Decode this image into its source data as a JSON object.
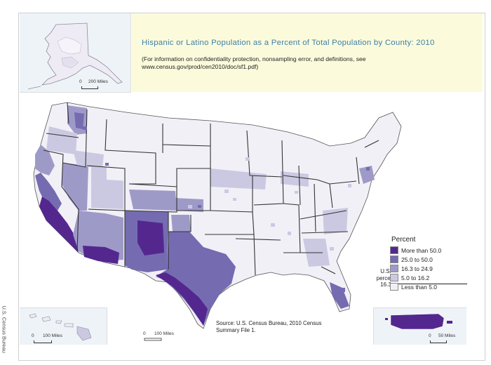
{
  "title": "Hispanic or Latino Population as a Percent of Total Population by County: 2010",
  "note": "(For information on confidentiality protection, nonsampling error, and definitions, see www.census.gov/prod/cen2010/doc/sf1.pdf)",
  "credit": "U.S. Census Bureau",
  "source": "Source: U.S. Census Bureau, 2010 Census Summary File 1.",
  "scales": {
    "alaska": "200 Miles",
    "alaska_zero": "0",
    "hawaii": "100 Miles",
    "hawaii_zero": "0",
    "mainland": "100 Miles",
    "mainland_zero": "0",
    "puerto_rico": "50 Miles",
    "puerto_rico_zero": "0"
  },
  "legend": {
    "title": "Percent",
    "items": [
      {
        "label": "More than 50.0",
        "color": "#54278f"
      },
      {
        "label": "25.0 to 50.0",
        "color": "#756bb1"
      },
      {
        "label": "16.3 to 24.9",
        "color": "#9e9ac8"
      },
      {
        "label": "5.0 to 16.2",
        "color": "#cbc9e2"
      },
      {
        "label": "Less than 5.0",
        "color": "#f2f0f7"
      }
    ],
    "us_percent_label": "U.S. percent",
    "us_percent_value": "16.3"
  }
}
